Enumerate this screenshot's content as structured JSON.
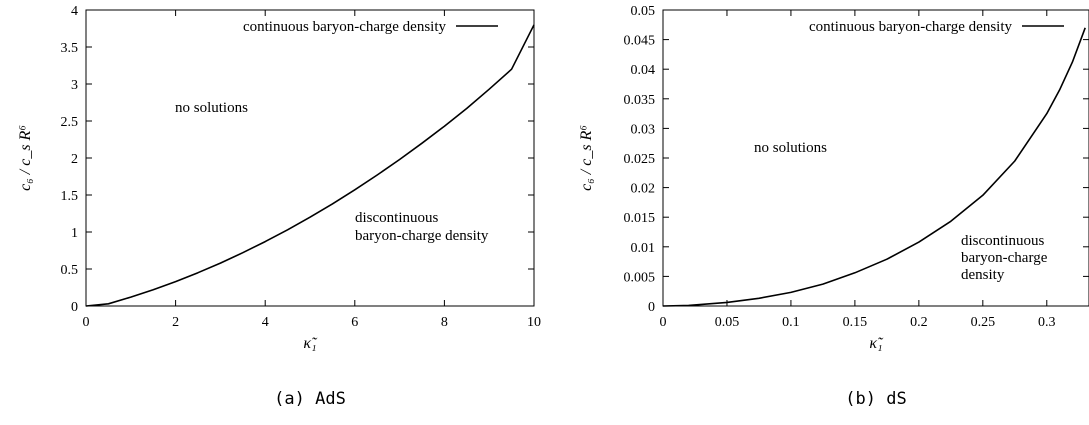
{
  "chart_data": [
    {
      "type": "line",
      "xlabel": "κ̃₁",
      "ylabel": "c₆ / c_s R⁶",
      "xlim": [
        0,
        10
      ],
      "ylim": [
        0,
        4
      ],
      "x_ticks": [
        "0",
        "2",
        "4",
        "6",
        "8",
        "10"
      ],
      "y_ticks": [
        "0",
        "0.5",
        "1",
        "1.5",
        "2",
        "2.5",
        "3",
        "3.5",
        "4"
      ],
      "legend": {
        "position": "top-right",
        "entries": [
          "continuous baryon-charge density"
        ]
      },
      "annotations": [
        {
          "lines": [
            "no solutions"
          ]
        },
        {
          "lines": [
            "discontinuous",
            "baryon-charge density"
          ]
        }
      ],
      "caption": "(a) AdS",
      "series": [
        {
          "name": "continuous baryon-charge density",
          "x": [
            0,
            0.5,
            1,
            1.5,
            2,
            2.5,
            3,
            3.5,
            4,
            4.5,
            5,
            5.5,
            6,
            6.5,
            7,
            7.5,
            8,
            8.5,
            9,
            9.5,
            10
          ],
          "y": [
            0,
            0.03,
            0.12,
            0.22,
            0.33,
            0.45,
            0.58,
            0.72,
            0.87,
            1.03,
            1.2,
            1.38,
            1.57,
            1.77,
            1.98,
            2.2,
            2.43,
            2.67,
            2.93,
            3.2,
            3.8
          ]
        }
      ]
    },
    {
      "type": "line",
      "xlabel": "κ̃₁",
      "ylabel": "c₆ / c_s R⁶",
      "xlim": [
        0,
        0.333
      ],
      "ylim": [
        0,
        0.05
      ],
      "x_ticks": [
        "0",
        "0.05",
        "0.1",
        "0.15",
        "0.2",
        "0.25",
        "0.3"
      ],
      "y_ticks": [
        "0",
        "0.005",
        "0.01",
        "0.015",
        "0.02",
        "0.025",
        "0.03",
        "0.035",
        "0.04",
        "0.045",
        "0.05"
      ],
      "legend": {
        "position": "top-right",
        "entries": [
          "continuous baryon-charge density"
        ]
      },
      "annotations": [
        {
          "lines": [
            "no solutions"
          ]
        },
        {
          "lines": [
            "discontinuous",
            "baryon-charge",
            "density"
          ]
        }
      ],
      "caption": "(b) dS",
      "series": [
        {
          "name": "continuous baryon-charge density",
          "x": [
            0,
            0.02,
            0.05,
            0.075,
            0.1,
            0.125,
            0.15,
            0.175,
            0.2,
            0.225,
            0.25,
            0.275,
            0.3,
            0.31,
            0.32,
            0.33
          ],
          "y": [
            0,
            0.0001,
            0.0006,
            0.0013,
            0.0023,
            0.0037,
            0.0056,
            0.0079,
            0.0108,
            0.0143,
            0.0187,
            0.0245,
            0.0325,
            0.0365,
            0.0412,
            0.047
          ]
        }
      ]
    }
  ]
}
